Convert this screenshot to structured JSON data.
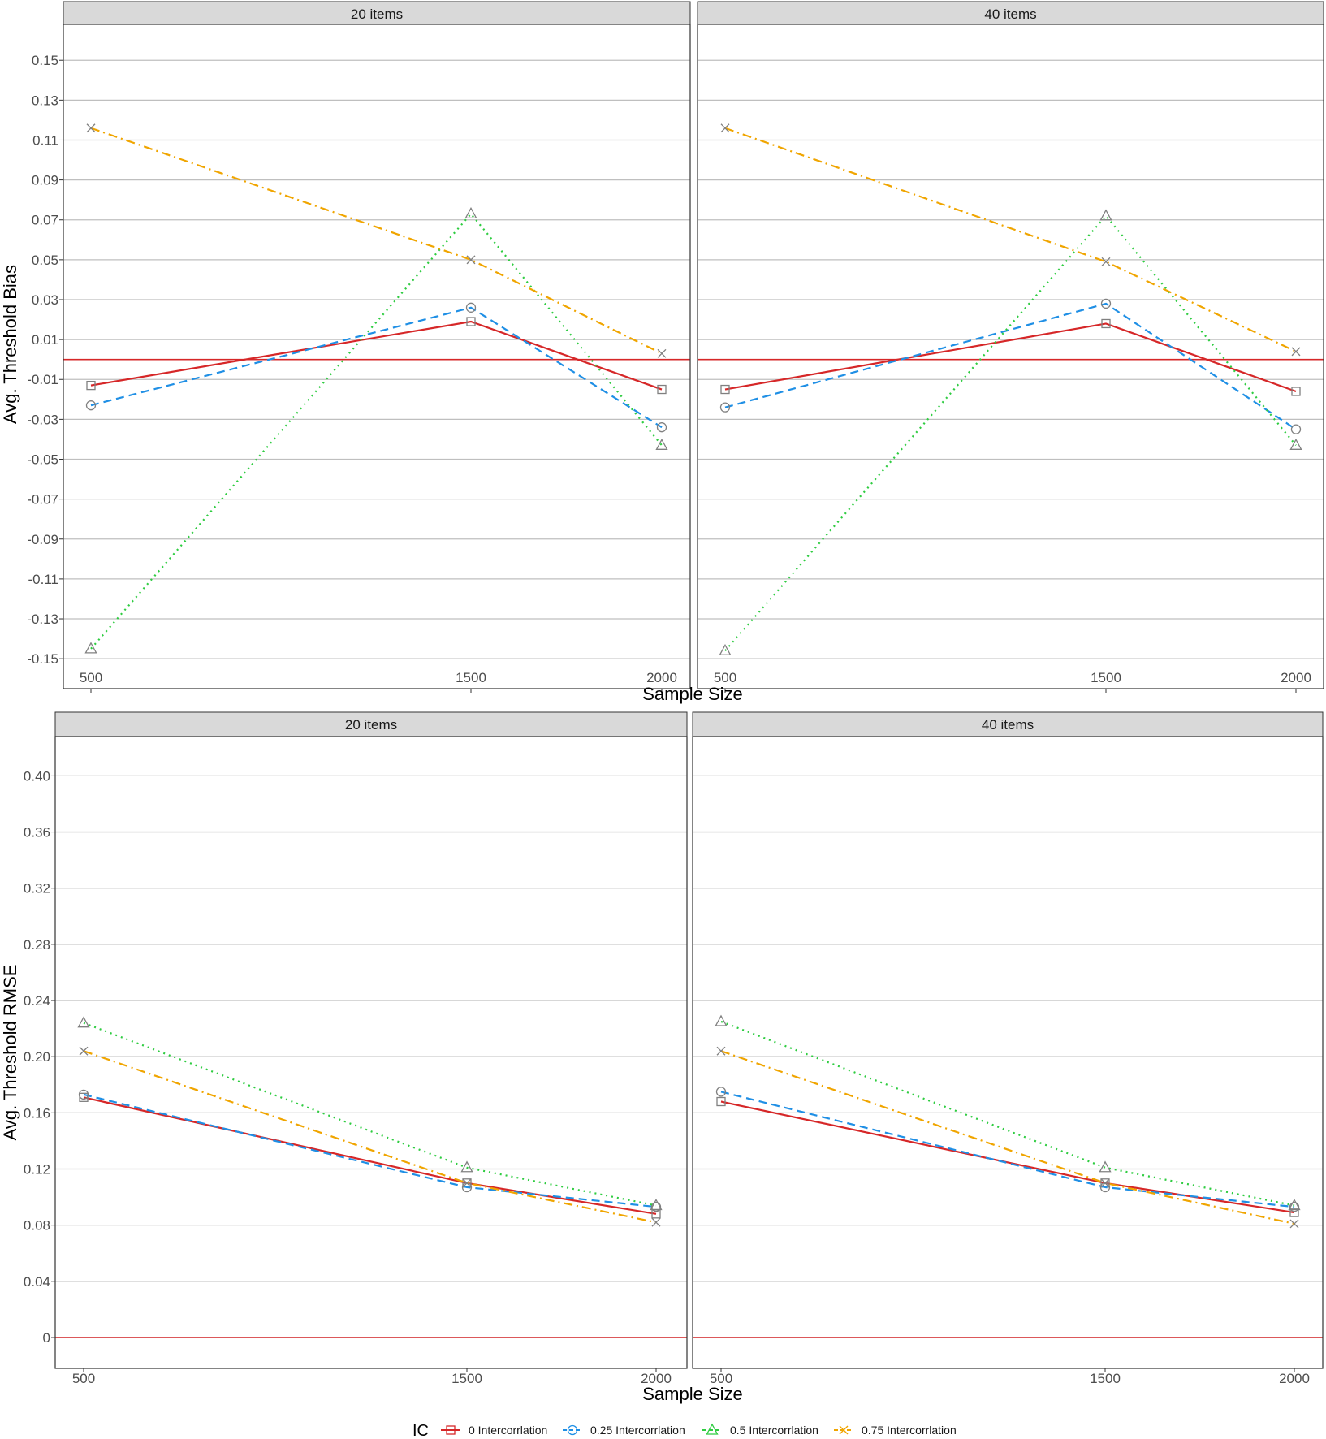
{
  "chart_data": [
    {
      "type": "line",
      "x": [
        500,
        1500,
        2000
      ],
      "xlabel": "Sample Size",
      "ylabel": "Avg. Threshold Bias",
      "ylim": [
        -0.165,
        0.168
      ],
      "yticks": [
        0.15,
        0.13,
        0.11,
        0.09,
        0.07,
        0.05,
        0.03,
        0.01,
        -0.01,
        -0.03,
        -0.05,
        -0.07,
        -0.09,
        -0.11,
        -0.13,
        -0.15
      ],
      "ytick_labels": [
        "0.15",
        "0.13",
        "0.11",
        "0.09",
        "0.07",
        "0.05",
        "0.03",
        "0.01",
        "-0.01",
        "-0.03",
        "-0.05",
        "-0.07",
        "-0.09",
        "-0.11",
        "-0.13",
        "-0.15"
      ],
      "xtick_labels": [
        "500",
        "1500",
        "2000"
      ],
      "reference_line": 0,
      "grid": "horizontal",
      "panels": [
        {
          "label": "20 items",
          "series": [
            {
              "name": "0 Intercorrlation",
              "values": [
                -0.013,
                0.019,
                -0.015
              ]
            },
            {
              "name": "0.25 Intercorrlation",
              "values": [
                -0.023,
                0.026,
                -0.034
              ]
            },
            {
              "name": "0.5 Intercorrlation",
              "values": [
                -0.145,
                0.073,
                -0.043
              ]
            },
            {
              "name": "0.75 Intercorrlation",
              "values": [
                0.116,
                0.05,
                0.003
              ]
            }
          ]
        },
        {
          "label": "40 items",
          "series": [
            {
              "name": "0 Intercorrlation",
              "values": [
                -0.015,
                0.018,
                -0.016
              ]
            },
            {
              "name": "0.25 Intercorrlation",
              "values": [
                -0.024,
                0.028,
                -0.035
              ]
            },
            {
              "name": "0.5 Intercorrlation",
              "values": [
                -0.146,
                0.072,
                -0.043
              ]
            },
            {
              "name": "0.75 Intercorrlation",
              "values": [
                0.116,
                0.049,
                0.004
              ]
            }
          ]
        }
      ]
    },
    {
      "type": "line",
      "x": [
        500,
        1500,
        2000
      ],
      "xlabel": "Sample Size",
      "ylabel": "Avg. Threshold RMSE",
      "ylim": [
        -0.022,
        0.428
      ],
      "yticks": [
        0.4,
        0.36,
        0.32,
        0.28,
        0.24,
        0.2,
        0.16,
        0.12,
        0.08,
        0.04,
        0
      ],
      "ytick_labels": [
        "0.40",
        "0.36",
        "0.32",
        "0.28",
        "0.24",
        "0.20",
        "0.16",
        "0.12",
        "0.08",
        "0.04",
        "0"
      ],
      "xtick_labels": [
        "500",
        "1500",
        "2000"
      ],
      "reference_line": 0,
      "grid": "horizontal",
      "panels": [
        {
          "label": "20 items",
          "series": [
            {
              "name": "0 Intercorrlation",
              "values": [
                0.171,
                0.11,
                0.088
              ]
            },
            {
              "name": "0.25 Intercorrlation",
              "values": [
                0.173,
                0.107,
                0.093
              ]
            },
            {
              "name": "0.5 Intercorrlation",
              "values": [
                0.224,
                0.121,
                0.094
              ]
            },
            {
              "name": "0.75 Intercorrlation",
              "values": [
                0.204,
                0.11,
                0.082
              ]
            }
          ]
        },
        {
          "label": "40 items",
          "series": [
            {
              "name": "0 Intercorrlation",
              "values": [
                0.168,
                0.11,
                0.089
              ]
            },
            {
              "name": "0.25 Intercorrlation",
              "values": [
                0.175,
                0.107,
                0.093
              ]
            },
            {
              "name": "0.5 Intercorrlation",
              "values": [
                0.225,
                0.121,
                0.094
              ]
            },
            {
              "name": "0.75 Intercorrlation",
              "values": [
                0.204,
                0.11,
                0.081
              ]
            }
          ]
        }
      ]
    }
  ],
  "legend": {
    "title": "IC",
    "position": "bottom",
    "entries": [
      {
        "name": "0 Intercorrlation",
        "color": "#d62728",
        "dash": "solid",
        "marker": "square"
      },
      {
        "name": "0.25 Intercorrlation",
        "color": "#1f8fe5",
        "dash": "dashed",
        "marker": "circle"
      },
      {
        "name": "0.5 Intercorrlation",
        "color": "#2ecc40",
        "dash": "dotted",
        "marker": "triangle"
      },
      {
        "name": "0.75 Intercorrlation",
        "color": "#f0a500",
        "dash": "dotdash",
        "marker": "cross"
      }
    ]
  },
  "colors": {
    "reference_line": "#d62728",
    "grid": "#bfbfbf",
    "strip_background": "#d9d9d9",
    "marker": "#808080"
  }
}
